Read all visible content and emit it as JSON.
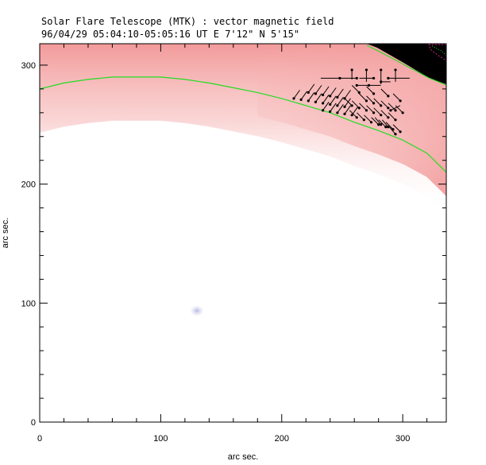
{
  "header": {
    "title": "Solar Flare Telescope (MTK) : vector magnetic field",
    "subtitle": "96/04/29  05:04:10-05:05:16 UT    E 7'12\"  N 5'15\""
  },
  "chart_data": {
    "type": "vector-field",
    "title": "Solar Flare Telescope (MTK) : vector magnetic field",
    "subtitle": "96/04/29  05:04:10-05:05:16 UT    E 7'12\"  N 5'15\"",
    "xlabel": "arc sec.",
    "ylabel": "arc sec.",
    "xlim": [
      0,
      336
    ],
    "ylim": [
      0,
      318
    ],
    "xticks": [
      0,
      100,
      200,
      300
    ],
    "yticks": [
      0,
      100,
      200,
      300
    ],
    "grid": false,
    "colors": {
      "limb": "#22dd22",
      "intensity": "#f4a0a0",
      "vectors": "#000000",
      "spot": "#c8c8ee"
    },
    "limb_curve": [
      [
        0,
        280
      ],
      [
        20,
        285
      ],
      [
        40,
        288
      ],
      [
        60,
        290
      ],
      [
        80,
        290
      ],
      [
        100,
        290
      ],
      [
        120,
        288
      ],
      [
        140,
        285
      ],
      [
        160,
        281
      ],
      [
        180,
        277
      ],
      [
        200,
        272
      ],
      [
        220,
        266
      ],
      [
        240,
        260
      ],
      [
        260,
        252
      ],
      [
        280,
        245
      ],
      [
        300,
        237
      ],
      [
        320,
        226
      ],
      [
        336,
        210
      ]
    ],
    "vectors": [
      {
        "x": 210,
        "y": 272,
        "dx": 5,
        "dy": 7
      },
      {
        "x": 216,
        "y": 271,
        "dx": 5,
        "dy": 7
      },
      {
        "x": 222,
        "y": 270,
        "dx": 5,
        "dy": 7
      },
      {
        "x": 228,
        "y": 269,
        "dx": 5,
        "dy": 7
      },
      {
        "x": 234,
        "y": 268,
        "dx": 5,
        "dy": 7
      },
      {
        "x": 240,
        "y": 267,
        "dx": 5,
        "dy": 7
      },
      {
        "x": 246,
        "y": 266,
        "dx": 5,
        "dy": 7
      },
      {
        "x": 252,
        "y": 265,
        "dx": 5,
        "dy": 7
      },
      {
        "x": 222,
        "y": 277,
        "dx": 5,
        "dy": 7
      },
      {
        "x": 228,
        "y": 276,
        "dx": 5,
        "dy": 7
      },
      {
        "x": 234,
        "y": 275,
        "dx": 5,
        "dy": 7
      },
      {
        "x": 240,
        "y": 274,
        "dx": 5,
        "dy": 7
      },
      {
        "x": 246,
        "y": 273,
        "dx": 5,
        "dy": 7
      },
      {
        "x": 252,
        "y": 272,
        "dx": 5,
        "dy": 7
      },
      {
        "x": 234,
        "y": 262,
        "dx": 5,
        "dy": 7
      },
      {
        "x": 240,
        "y": 261,
        "dx": 5,
        "dy": 7
      },
      {
        "x": 246,
        "y": 260,
        "dx": 5,
        "dy": 7
      },
      {
        "x": 252,
        "y": 259,
        "dx": 5,
        "dy": 7
      },
      {
        "x": 258,
        "y": 258,
        "dx": 5,
        "dy": 7
      },
      {
        "x": 258,
        "y": 266,
        "dx": -6,
        "dy": 6
      },
      {
        "x": 264,
        "y": 264,
        "dx": -6,
        "dy": 6
      },
      {
        "x": 270,
        "y": 262,
        "dx": -6,
        "dy": 6
      },
      {
        "x": 276,
        "y": 260,
        "dx": -6,
        "dy": 6
      },
      {
        "x": 282,
        "y": 258,
        "dx": -6,
        "dy": 6
      },
      {
        "x": 288,
        "y": 256,
        "dx": -6,
        "dy": 6
      },
      {
        "x": 294,
        "y": 254,
        "dx": -6,
        "dy": 6
      },
      {
        "x": 262,
        "y": 256,
        "dx": -6,
        "dy": 6
      },
      {
        "x": 268,
        "y": 254,
        "dx": -6,
        "dy": 6
      },
      {
        "x": 274,
        "y": 252,
        "dx": -6,
        "dy": 6
      },
      {
        "x": 280,
        "y": 250,
        "dx": -6,
        "dy": 6
      },
      {
        "x": 286,
        "y": 248,
        "dx": -6,
        "dy": 6
      },
      {
        "x": 292,
        "y": 246,
        "dx": -6,
        "dy": 6
      },
      {
        "x": 298,
        "y": 244,
        "dx": -6,
        "dy": 6
      },
      {
        "x": 270,
        "y": 270,
        "dx": -6,
        "dy": 6
      },
      {
        "x": 276,
        "y": 268,
        "dx": -6,
        "dy": 6
      },
      {
        "x": 282,
        "y": 266,
        "dx": -6,
        "dy": 6
      },
      {
        "x": 288,
        "y": 264,
        "dx": -6,
        "dy": 6
      },
      {
        "x": 294,
        "y": 262,
        "dx": -6,
        "dy": 6
      },
      {
        "x": 300,
        "y": 260,
        "dx": -6,
        "dy": 6
      },
      {
        "x": 282,
        "y": 250,
        "dx": -5,
        "dy": 6
      },
      {
        "x": 288,
        "y": 248,
        "dx": -5,
        "dy": 6
      },
      {
        "x": 294,
        "y": 242,
        "dx": -5,
        "dy": 6
      },
      {
        "x": 264,
        "y": 277,
        "dx": -6,
        "dy": 6
      },
      {
        "x": 276,
        "y": 276,
        "dx": -6,
        "dy": 6
      },
      {
        "x": 288,
        "y": 274,
        "dx": -6,
        "dy": 6
      },
      {
        "x": 298,
        "y": 270,
        "dx": -6,
        "dy": 6
      },
      {
        "x": 290,
        "y": 262,
        "dx": 8,
        "dy": 4
      },
      {
        "x": 248,
        "y": 289,
        "dx": -16,
        "dy": 0
      },
      {
        "x": 262,
        "y": 289,
        "dx": -14,
        "dy": 0
      },
      {
        "x": 276,
        "y": 289,
        "dx": -12,
        "dy": 0
      },
      {
        "x": 288,
        "y": 289,
        "dx": 18,
        "dy": 0
      },
      {
        "x": 262,
        "y": 283,
        "dx": 10,
        "dy": 0
      },
      {
        "x": 272,
        "y": 283,
        "dx": 10,
        "dy": 0
      },
      {
        "x": 282,
        "y": 286,
        "dx": 8,
        "dy": 0
      },
      {
        "x": 258,
        "y": 296,
        "dx": 0,
        "dy": -8
      },
      {
        "x": 270,
        "y": 296,
        "dx": 0,
        "dy": -10
      },
      {
        "x": 282,
        "y": 296,
        "dx": 0,
        "dy": -12
      },
      {
        "x": 294,
        "y": 296,
        "dx": 0,
        "dy": -10
      }
    ]
  }
}
